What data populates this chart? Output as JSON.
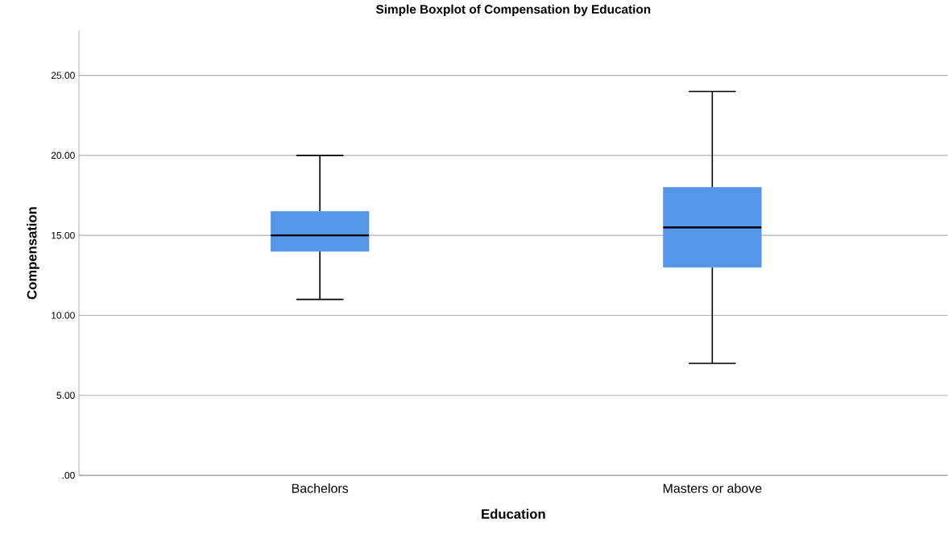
{
  "chart_data": {
    "type": "box",
    "title": "Simple Boxplot of Compensation by Education",
    "xlabel": "Education",
    "ylabel": "Compensation",
    "categories": [
      "Bachelors",
      "Masters or above"
    ],
    "boxes": [
      {
        "low": 11,
        "q1": 14,
        "median": 15,
        "q3": 16.5,
        "high": 20
      },
      {
        "low": 7,
        "q1": 13,
        "median": 15.5,
        "q3": 18,
        "high": 24
      }
    ],
    "color": "#5596e6",
    "ylim": [
      0,
      27.8
    ],
    "yticks": [
      {
        "value": 0,
        "label": ".00"
      },
      {
        "value": 5,
        "label": "5.00"
      },
      {
        "value": 10,
        "label": "10.00"
      },
      {
        "value": 15,
        "label": "15.00"
      },
      {
        "value": 20,
        "label": "20.00"
      },
      {
        "value": 25,
        "label": "25.00"
      }
    ],
    "grid": "y"
  }
}
